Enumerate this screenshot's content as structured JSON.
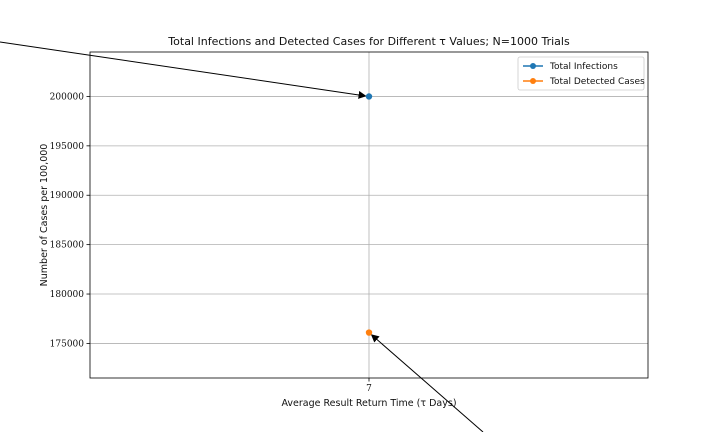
{
  "chart_data": {
    "type": "line",
    "title": "Total Infections and Detected Cases for Different τ Values; N=1000 Trials",
    "xlabel": "Average Result Return Time (τ Days)",
    "ylabel": "Number of Cases per 100,000",
    "categories": [
      "7"
    ],
    "ylim": [
      171500,
      204500
    ],
    "yticks": [
      175000,
      180000,
      185000,
      190000,
      195000,
      200000
    ],
    "ytick_labels": [
      "175000",
      "180000",
      "185000",
      "190000",
      "195000",
      "200000"
    ],
    "grid": true,
    "legend_position": "top-right",
    "series": [
      {
        "name": "Total Infections",
        "values": [
          200000
        ],
        "color": "#1f77b4"
      },
      {
        "name": "Total Detected Cases",
        "values": [
          176100
        ],
        "color": "#ff7f0e"
      }
    ],
    "annotations": [
      {
        "target_series": "Total Infections",
        "target_category": "7",
        "text": ""
      },
      {
        "target_series": "Total Detected Cases",
        "target_category": "7",
        "text": ""
      }
    ]
  }
}
